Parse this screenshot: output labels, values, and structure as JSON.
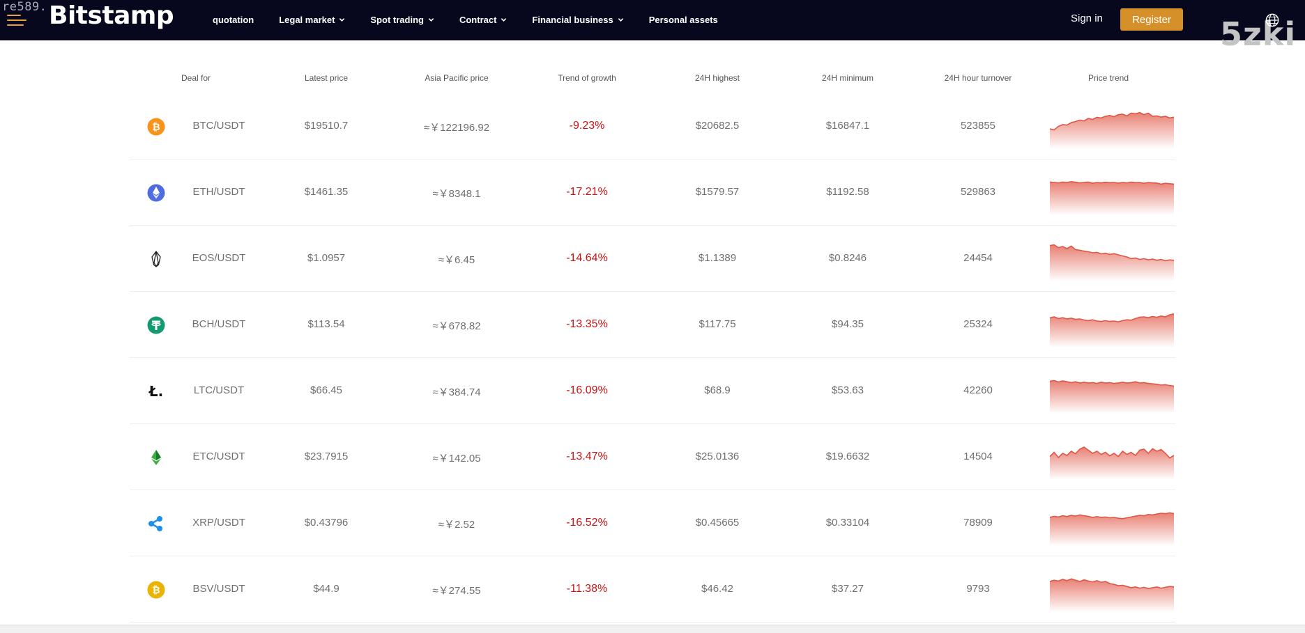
{
  "header": {
    "watermark_left": "re589.",
    "logo": "Bitstamp",
    "nav": [
      {
        "label": "quotation",
        "has_dropdown": false
      },
      {
        "label": "Legal market",
        "has_dropdown": true
      },
      {
        "label": "Spot trading",
        "has_dropdown": true
      },
      {
        "label": "Contract",
        "has_dropdown": true
      },
      {
        "label": "Financial business",
        "has_dropdown": true
      },
      {
        "label": "Personal assets",
        "has_dropdown": false
      }
    ],
    "sign_in": "Sign in",
    "register": "Register",
    "watermark_right": "5zki"
  },
  "colors": {
    "header_bg": "#07081d",
    "accent": "#d6902a",
    "negative": "#cc1111",
    "spark_line": "#e05544"
  },
  "table": {
    "columns": [
      "Deal for",
      "Latest price",
      "Asia Pacific price",
      "Trend of growth",
      "24H highest",
      "24H minimum",
      "24H hour turnover",
      "Price trend"
    ],
    "rows": [
      {
        "icon": "bitcoin-icon",
        "pair": "BTC/USDT",
        "latest": "$19510.7",
        "asia": "≈￥122196.92",
        "growth": "-9.23%",
        "high": "$20682.5",
        "low": "$16847.1",
        "turnover": "523855",
        "trend": [
          0.1,
          0.05,
          0.22,
          0.3,
          0.28,
          0.4,
          0.45,
          0.52,
          0.48,
          0.6,
          0.55,
          0.65,
          0.62,
          0.7,
          0.74,
          0.68,
          0.78,
          0.8,
          0.72,
          0.85,
          0.82,
          0.88,
          0.78,
          0.85,
          0.7,
          0.72,
          0.66,
          0.7,
          0.62,
          0.66
        ]
      },
      {
        "icon": "ethereum-icon",
        "pair": "ETH/USDT",
        "latest": "$1461.35",
        "asia": "≈￥8348.1",
        "growth": "-17.21%",
        "high": "$1579.57",
        "low": "$1192.58",
        "turnover": "529863",
        "trend": [
          0.72,
          0.7,
          0.68,
          0.72,
          0.7,
          0.74,
          0.71,
          0.68,
          0.7,
          0.72,
          0.66,
          0.7,
          0.68,
          0.71,
          0.69,
          0.7,
          0.67,
          0.7,
          0.68,
          0.72,
          0.69,
          0.7,
          0.66,
          0.7,
          0.68,
          0.67,
          0.62,
          0.66,
          0.64,
          0.62
        ]
      },
      {
        "icon": "eos-icon",
        "pair": "EOS/USDT",
        "latest": "$1.0957",
        "asia": "≈￥6.45",
        "growth": "-14.64%",
        "high": "$1.1389",
        "low": "$0.8246",
        "turnover": "24454",
        "trend": [
          0.85,
          0.88,
          0.75,
          0.8,
          0.7,
          0.82,
          0.65,
          0.62,
          0.58,
          0.55,
          0.5,
          0.52,
          0.45,
          0.48,
          0.42,
          0.46,
          0.4,
          0.35,
          0.3,
          0.22,
          0.25,
          0.18,
          0.22,
          0.16,
          0.2,
          0.14,
          0.18,
          0.12,
          0.16,
          0.14
        ]
      },
      {
        "icon": "tether-icon",
        "pair": "BCH/USDT",
        "latest": "$113.54",
        "asia": "≈￥678.82",
        "growth": "-13.35%",
        "high": "$117.75",
        "low": "$94.35",
        "turnover": "25324",
        "trend": [
          0.55,
          0.6,
          0.52,
          0.56,
          0.5,
          0.54,
          0.48,
          0.5,
          0.45,
          0.42,
          0.46,
          0.4,
          0.38,
          0.42,
          0.38,
          0.4,
          0.36,
          0.42,
          0.46,
          0.44,
          0.52,
          0.58,
          0.6,
          0.56,
          0.62,
          0.58,
          0.64,
          0.6,
          0.7,
          0.74
        ]
      },
      {
        "icon": "litecoin-icon",
        "pair": "LTC/USDT",
        "latest": "$66.45",
        "asia": "≈￥384.74",
        "growth": "-16.09%",
        "high": "$68.9",
        "low": "$53.63",
        "turnover": "42260",
        "trend": [
          0.68,
          0.72,
          0.65,
          0.7,
          0.66,
          0.62,
          0.66,
          0.6,
          0.64,
          0.6,
          0.62,
          0.58,
          0.64,
          0.6,
          0.62,
          0.58,
          0.6,
          0.64,
          0.6,
          0.62,
          0.66,
          0.6,
          0.62,
          0.58,
          0.56,
          0.54,
          0.5,
          0.52,
          0.48,
          0.45
        ]
      },
      {
        "icon": "ethereum-classic-icon",
        "pair": "ETC/USDT",
        "latest": "$23.7915",
        "asia": "≈￥142.05",
        "growth": "-13.47%",
        "high": "$25.0136",
        "low": "$19.6632",
        "turnover": "14504",
        "trend": [
          0.25,
          0.45,
          0.2,
          0.4,
          0.3,
          0.5,
          0.38,
          0.6,
          0.7,
          0.55,
          0.4,
          0.5,
          0.35,
          0.45,
          0.28,
          0.4,
          0.25,
          0.5,
          0.35,
          0.45,
          0.3,
          0.55,
          0.6,
          0.4,
          0.62,
          0.5,
          0.58,
          0.4,
          0.18,
          0.3
        ]
      },
      {
        "icon": "ripple-icon",
        "pair": "XRP/USDT",
        "latest": "$0.43796",
        "asia": "≈￥2.52",
        "growth": "-16.52%",
        "high": "$0.45665",
        "low": "$0.33104",
        "turnover": "78909",
        "trend": [
          0.5,
          0.55,
          0.52,
          0.58,
          0.54,
          0.6,
          0.56,
          0.62,
          0.58,
          0.55,
          0.5,
          0.54,
          0.5,
          0.52,
          0.48,
          0.5,
          0.46,
          0.44,
          0.48,
          0.52,
          0.56,
          0.6,
          0.58,
          0.64,
          0.62,
          0.66,
          0.7,
          0.68,
          0.72,
          0.68
        ]
      },
      {
        "icon": "bitcoin-sv-icon",
        "pair": "BSV/USDT",
        "latest": "$44.9",
        "asia": "≈￥274.55",
        "growth": "-11.38%",
        "high": "$46.42",
        "low": "$37.27",
        "turnover": "9793",
        "trend": [
          0.6,
          0.66,
          0.62,
          0.7,
          0.64,
          0.72,
          0.66,
          0.6,
          0.68,
          0.62,
          0.58,
          0.64,
          0.56,
          0.6,
          0.5,
          0.46,
          0.4,
          0.42,
          0.36,
          0.3,
          0.34,
          0.28,
          0.32,
          0.26,
          0.3,
          0.34,
          0.28,
          0.32,
          0.36,
          0.34
        ]
      }
    ]
  }
}
